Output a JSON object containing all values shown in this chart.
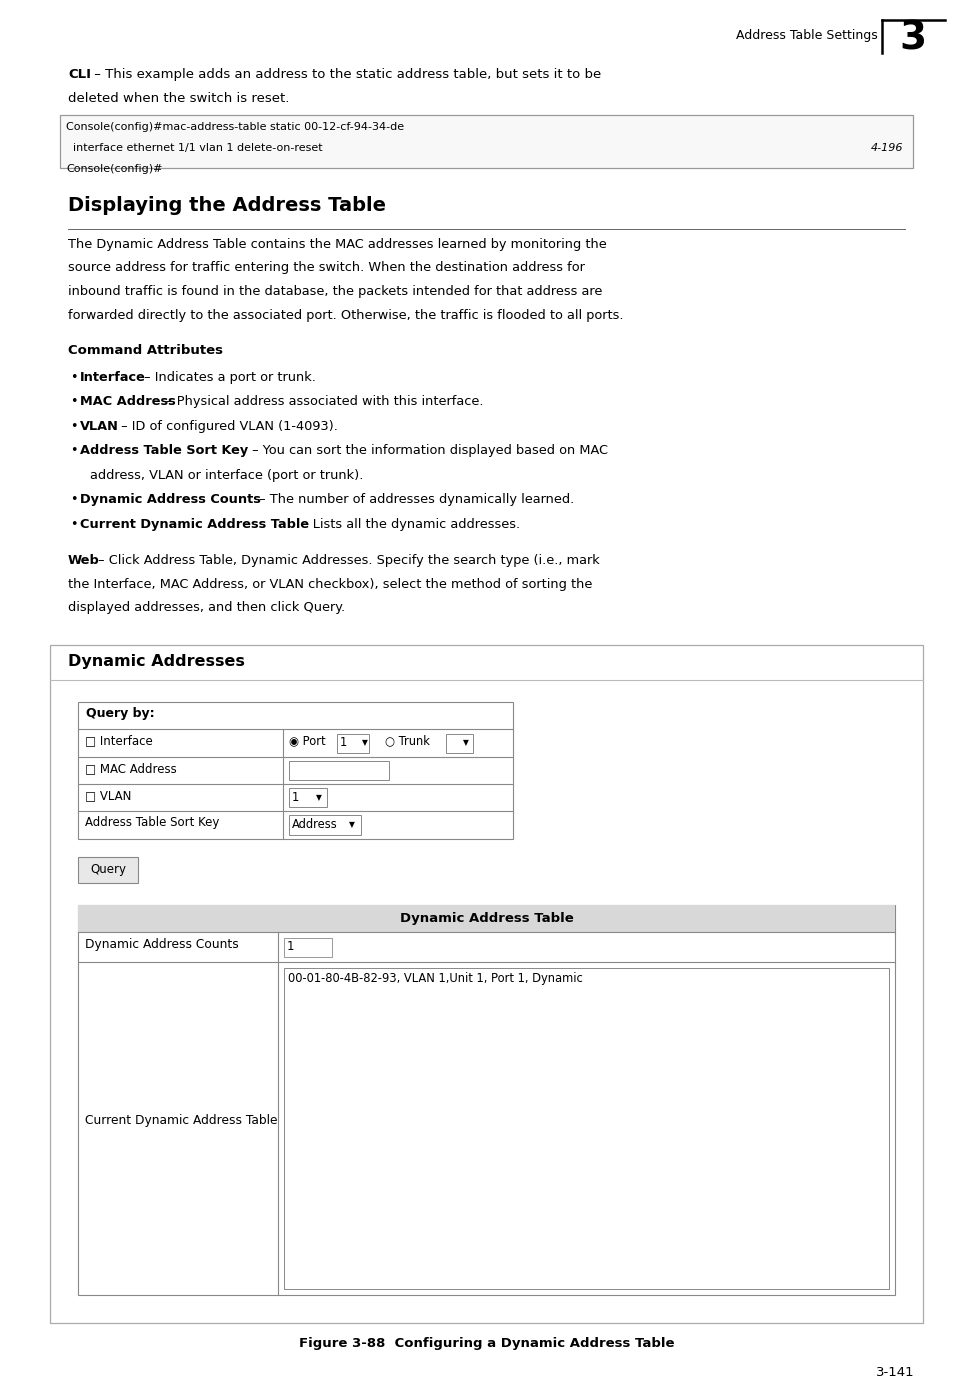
{
  "bg_color": "#ffffff",
  "page_width": 9.54,
  "page_height": 13.88,
  "dpi": 100,
  "header_text": "Address Table Settings",
  "header_number": "3",
  "cli_bold": "CLI",
  "cli_rest_line1": " – This example adds an address to the static address table, but sets it to be",
  "cli_rest_line2": "deleted when the switch is reset.",
  "code_lines": [
    "Console(config)#mac-address-table static 00-12-cf-94-34-de",
    "  interface ethernet 1/1 vlan 1 delete-on-reset",
    "Console(config)#"
  ],
  "code_ref": "4-196",
  "section_title": "Displaying the Address Table",
  "para1_lines": [
    "The Dynamic Address Table contains the MAC addresses learned by monitoring the",
    "source address for traffic entering the switch. When the destination address for",
    "inbound traffic is found in the database, the packets intended for that address are",
    "forwarded directly to the associated port. Otherwise, the traffic is flooded to all ports."
  ],
  "cmd_attr_title": "Command Attributes",
  "bullets": [
    {
      "bold": "Interface",
      "normal": " – Indicates a port or trunk.",
      "extra_line": ""
    },
    {
      "bold": "MAC Address",
      "normal": " – Physical address associated with this interface.",
      "extra_line": ""
    },
    {
      "bold": "VLAN",
      "normal": " – ID of configured VLAN (1-4093).",
      "extra_line": ""
    },
    {
      "bold": "Address Table Sort Key",
      "normal": " – You can sort the information displayed based on MAC",
      "extra_line": "address, VLAN or interface (port or trunk)."
    },
    {
      "bold": "Dynamic Address Counts",
      "normal": " – The number of addresses dynamically learned.",
      "extra_line": ""
    },
    {
      "bold": "Current Dynamic Address Table",
      "normal": " – Lists all the dynamic addresses.",
      "extra_line": ""
    }
  ],
  "web_bold": "Web",
  "web_lines": [
    " – Click Address Table, Dynamic Addresses. Specify the search type (i.e., mark",
    "the Interface, MAC Address, or VLAN checkbox), select the method of sorting the",
    "displayed addresses, and then click Query."
  ],
  "box_title": "Dynamic Addresses",
  "query_label": "Query by:",
  "query_btn": "Query",
  "dyn_table_title": "Dynamic Address Table",
  "dyn_row1_left": "Dynamic Address Counts",
  "dyn_row1_right": "1",
  "dyn_row2_left": "Current Dynamic Address Table",
  "dyn_row2_right": "00-01-80-4B-82-93, VLAN 1,Unit 1, Port 1, Dynamic",
  "fig_caption": "Figure 3-88  Configuring a Dynamic Address Table",
  "page_num": "3-141"
}
